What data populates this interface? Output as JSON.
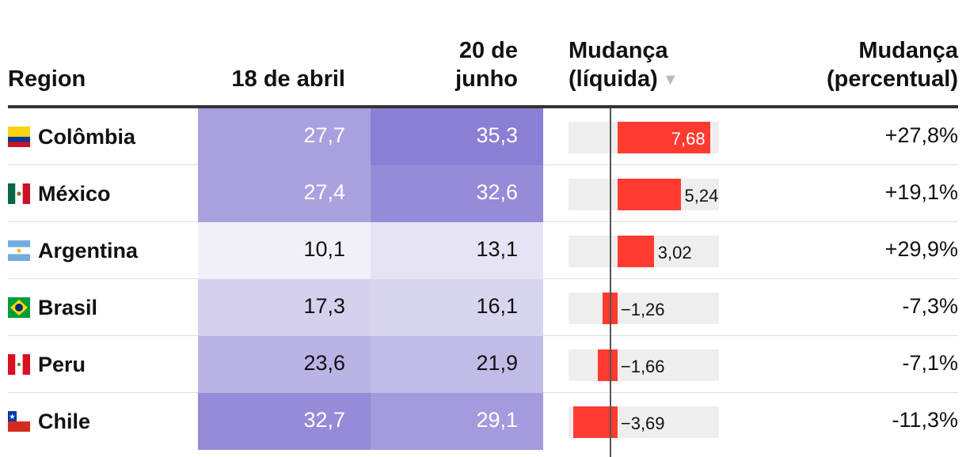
{
  "header": {
    "region": "Region",
    "date1": "18 de abril",
    "date2_line1": "20 de",
    "date2_line2": "junho",
    "net_line1": "Mudança",
    "net_line2": "(líquida)",
    "sort_indicator": "▼",
    "pct_line1": "Mudança",
    "pct_line2": "(percentual)"
  },
  "rows": [
    {
      "region": "Colômbia",
      "flag": "colombia-flag-icon",
      "v1": "27,7",
      "v2": "35,3",
      "net_label": "7,68",
      "pct": "+27,8%"
    },
    {
      "region": "México",
      "flag": "mexico-flag-icon",
      "v1": "27,4",
      "v2": "32,6",
      "net_label": "5,24",
      "pct": "+19,1%"
    },
    {
      "region": "Argentina",
      "flag": "argentina-flag-icon",
      "v1": "10,1",
      "v2": "13,1",
      "net_label": "3,02",
      "pct": "+29,9%"
    },
    {
      "region": "Brasil",
      "flag": "brazil-flag-icon",
      "v1": "17,3",
      "v2": "16,1",
      "net_label": "−1,26",
      "pct": "-7,3%"
    },
    {
      "region": "Peru",
      "flag": "peru-flag-icon",
      "v1": "23,6",
      "v2": "21,9",
      "net_label": "−1,66",
      "pct": "-7,1%"
    },
    {
      "region": "Chile",
      "flag": "chile-flag-icon",
      "v1": "32,7",
      "v2": "29,1",
      "net_label": "−3,69",
      "pct": "-11,3%"
    }
  ],
  "chart_data": {
    "type": "table",
    "columns": [
      "Region",
      "18 de abril",
      "20 de junho",
      "Mudança (líquida)",
      "Mudança (percentual)"
    ],
    "sorted_by": "Mudança (líquida)",
    "sort_direction": "descending",
    "categories": [
      "Colômbia",
      "México",
      "Argentina",
      "Brasil",
      "Peru",
      "Chile"
    ],
    "series": [
      {
        "name": "18 de abril",
        "values": [
          27.7,
          27.4,
          10.1,
          17.3,
          23.6,
          32.7
        ]
      },
      {
        "name": "20 de junho",
        "values": [
          35.3,
          32.6,
          13.1,
          16.1,
          21.9,
          29.1
        ]
      },
      {
        "name": "Mudança (líquida)",
        "values": [
          7.68,
          5.24,
          3.02,
          -1.26,
          -1.66,
          -3.69
        ]
      },
      {
        "name": "Mudança (percentual)",
        "values": [
          27.8,
          19.1,
          29.9,
          -7.3,
          -7.1,
          -11.3
        ]
      }
    ],
    "net_range": [
      -4.07,
      8.43
    ],
    "colors": {
      "heat_low": "#f1f0f8",
      "heat_high": "#8a7fd4",
      "bar": "#ff3b2f",
      "bar_background": "#eeeeee"
    }
  }
}
